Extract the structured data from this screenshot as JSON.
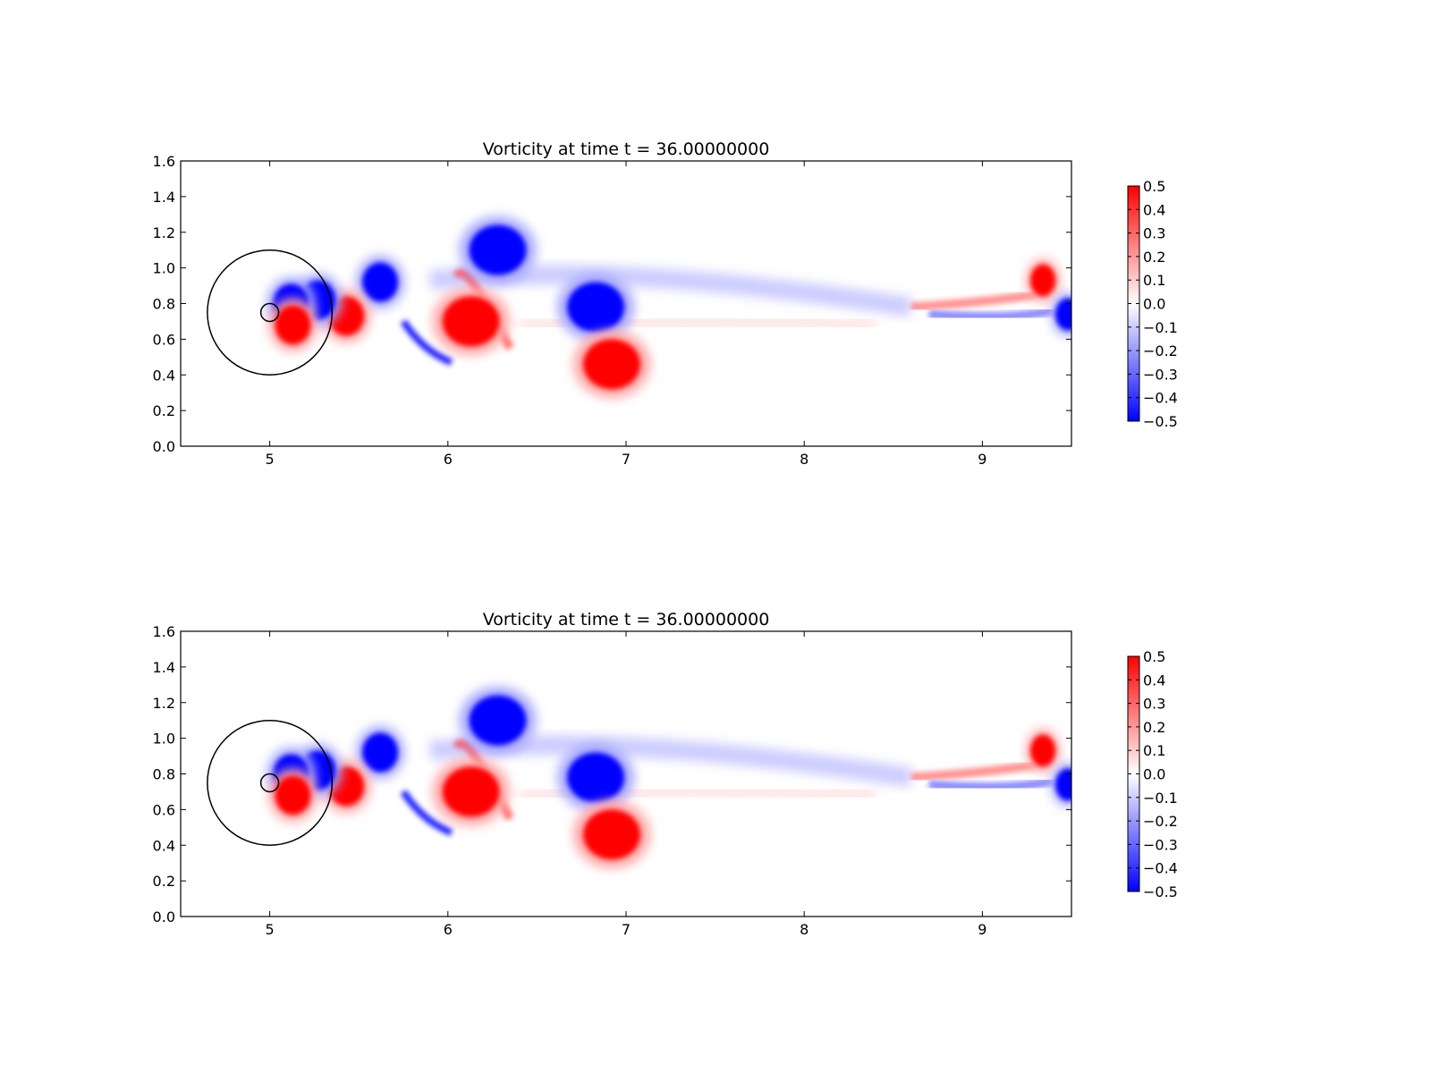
{
  "colors": {
    "positive": "#ff0000",
    "negative": "#0000ff",
    "zero": "#ffffff",
    "axes": "#000000",
    "background": "#ffffff"
  },
  "chart_data": [
    {
      "type": "heatmap",
      "title": "Vorticity at time t =    36.00000000",
      "xlabel": "",
      "ylabel": "",
      "xlim": [
        4.5,
        9.5
      ],
      "ylim": [
        0.0,
        1.6
      ],
      "x_ticks": [
        "5",
        "6",
        "7",
        "8",
        "9"
      ],
      "y_ticks": [
        "0.0",
        "0.2",
        "0.4",
        "0.6",
        "0.8",
        "1.0",
        "1.2",
        "1.4",
        "1.6"
      ],
      "colormap": "bwr",
      "clim": [
        -0.5,
        0.5
      ],
      "colorbar_ticks": [
        "0.5",
        "0.4",
        "0.3",
        "0.2",
        "0.1",
        "0.0",
        "−0.1",
        "−0.2",
        "−0.3",
        "−0.4",
        "−0.5"
      ],
      "grid": false,
      "overlay_circles": [
        {
          "center": [
            5.0,
            0.75
          ],
          "radius": 0.35
        },
        {
          "center": [
            5.0,
            0.75
          ],
          "radius": 0.05
        }
      ],
      "vortices": [
        {
          "x": 6.28,
          "y": 1.1,
          "value": -0.5
        },
        {
          "x": 6.83,
          "y": 0.78,
          "value": -0.5
        },
        {
          "x": 6.92,
          "y": 0.46,
          "value": 0.5
        },
        {
          "x": 6.13,
          "y": 0.7,
          "value": 0.5
        },
        {
          "x": 5.62,
          "y": 0.92,
          "value": -0.5
        },
        {
          "x": 5.43,
          "y": 0.73,
          "value": 0.5
        },
        {
          "x": 5.27,
          "y": 0.82,
          "value": -0.5
        },
        {
          "x": 5.12,
          "y": 0.8,
          "value": -0.5
        },
        {
          "x": 5.13,
          "y": 0.68,
          "value": 0.5
        },
        {
          "x": 9.34,
          "y": 0.93,
          "value": 0.5
        },
        {
          "x": 9.48,
          "y": 0.74,
          "value": -0.5
        }
      ]
    },
    {
      "type": "heatmap",
      "title": "Vorticity at time t =    36.00000000",
      "xlabel": "",
      "ylabel": "",
      "xlim": [
        4.5,
        9.5
      ],
      "ylim": [
        0.0,
        1.6
      ],
      "x_ticks": [
        "5",
        "6",
        "7",
        "8",
        "9"
      ],
      "y_ticks": [
        "0.0",
        "0.2",
        "0.4",
        "0.6",
        "0.8",
        "1.0",
        "1.2",
        "1.4",
        "1.6"
      ],
      "colormap": "bwr",
      "clim": [
        -0.5,
        0.5
      ],
      "colorbar_ticks": [
        "0.5",
        "0.4",
        "0.3",
        "0.2",
        "0.1",
        "0.0",
        "−0.1",
        "−0.2",
        "−0.3",
        "−0.4",
        "−0.5"
      ],
      "grid": false,
      "overlay_circles": [
        {
          "center": [
            5.0,
            0.75
          ],
          "radius": 0.35
        },
        {
          "center": [
            5.0,
            0.75
          ],
          "radius": 0.05
        }
      ],
      "vortices": [
        {
          "x": 6.28,
          "y": 1.1,
          "value": -0.5
        },
        {
          "x": 6.83,
          "y": 0.78,
          "value": -0.5
        },
        {
          "x": 6.92,
          "y": 0.46,
          "value": 0.5
        },
        {
          "x": 6.13,
          "y": 0.7,
          "value": 0.5
        },
        {
          "x": 5.62,
          "y": 0.92,
          "value": -0.5
        },
        {
          "x": 5.43,
          "y": 0.73,
          "value": 0.5
        },
        {
          "x": 5.27,
          "y": 0.82,
          "value": -0.5
        },
        {
          "x": 5.12,
          "y": 0.8,
          "value": -0.5
        },
        {
          "x": 5.13,
          "y": 0.68,
          "value": 0.5
        },
        {
          "x": 9.34,
          "y": 0.93,
          "value": 0.5
        },
        {
          "x": 9.48,
          "y": 0.74,
          "value": -0.5
        }
      ]
    }
  ]
}
